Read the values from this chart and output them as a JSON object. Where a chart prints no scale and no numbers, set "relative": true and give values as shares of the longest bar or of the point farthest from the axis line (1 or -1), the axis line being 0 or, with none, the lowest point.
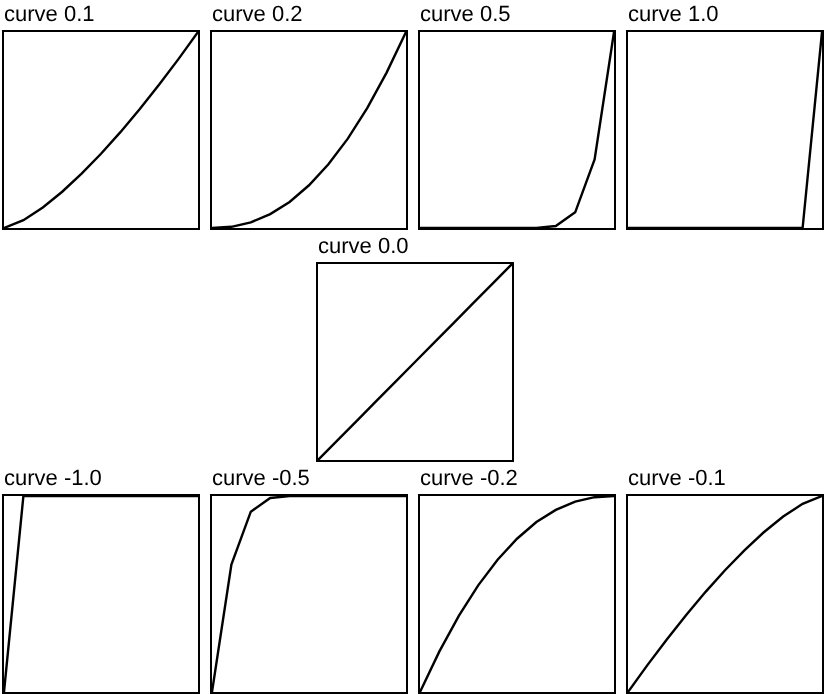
{
  "chart_data": [
    {
      "type": "line",
      "title": "curve 0.1",
      "categories": [
        null,
        null,
        null,
        null,
        null,
        null,
        null,
        null,
        null,
        null,
        null
      ],
      "values": [
        0,
        0.04,
        0.105,
        0.185,
        0.277,
        0.379,
        0.489,
        0.607,
        0.732,
        0.863,
        1
      ],
      "color": "#000000",
      "relative": true
    },
    {
      "type": "line",
      "title": "curve 0.2",
      "categories": [
        null,
        null,
        null,
        null,
        null,
        null,
        null,
        null,
        null,
        null,
        null
      ],
      "values": [
        0,
        0.006,
        0.029,
        0.071,
        0.133,
        0.218,
        0.325,
        0.456,
        0.612,
        0.793,
        1
      ],
      "color": "#000000",
      "relative": true
    },
    {
      "type": "line",
      "title": "curve 0.5",
      "categories": [
        null,
        null,
        null,
        null,
        null,
        null,
        null,
        null,
        null,
        null,
        null
      ],
      "values": [
        0,
        0,
        0,
        0,
        0,
        0,
        0,
        0.01,
        0.08,
        0.35,
        1
      ],
      "color": "#000000",
      "relative": true
    },
    {
      "type": "line",
      "title": "curve 1.0",
      "categories": [
        null,
        null,
        null,
        null,
        null,
        null,
        null,
        null,
        null,
        null,
        null
      ],
      "values": [
        0,
        0,
        0,
        0,
        0,
        0,
        0,
        0,
        0,
        0,
        1
      ],
      "color": "#000000",
      "relative": true
    },
    {
      "type": "line",
      "title": "curve 0.0",
      "categories": [
        null,
        null,
        null,
        null,
        null,
        null,
        null,
        null,
        null,
        null,
        null
      ],
      "values": [
        0,
        0.1,
        0.2,
        0.3,
        0.4,
        0.5,
        0.6,
        0.7,
        0.8,
        0.9,
        1
      ],
      "color": "#000000",
      "relative": true
    },
    {
      "type": "line",
      "title": "curve -1.0",
      "categories": [
        null,
        null,
        null,
        null,
        null,
        null,
        null,
        null,
        null,
        null,
        null
      ],
      "values": [
        0,
        1,
        1,
        1,
        1,
        1,
        1,
        1,
        1,
        1,
        1
      ],
      "color": "#000000",
      "relative": true
    },
    {
      "type": "line",
      "title": "curve -0.5",
      "categories": [
        null,
        null,
        null,
        null,
        null,
        null,
        null,
        null,
        null,
        null,
        null
      ],
      "values": [
        0,
        0.65,
        0.92,
        0.99,
        1,
        1,
        1,
        1,
        1,
        1,
        1
      ],
      "color": "#000000",
      "relative": true
    },
    {
      "type": "line",
      "title": "curve -0.2",
      "categories": [
        null,
        null,
        null,
        null,
        null,
        null,
        null,
        null,
        null,
        null,
        null
      ],
      "values": [
        0,
        0.207,
        0.388,
        0.544,
        0.675,
        0.782,
        0.867,
        0.929,
        0.971,
        0.994,
        1
      ],
      "color": "#000000",
      "relative": true
    },
    {
      "type": "line",
      "title": "curve -0.1",
      "categories": [
        null,
        null,
        null,
        null,
        null,
        null,
        null,
        null,
        null,
        null,
        null
      ],
      "values": [
        0,
        0.137,
        0.268,
        0.393,
        0.511,
        0.621,
        0.723,
        0.815,
        0.895,
        0.96,
        1
      ],
      "color": "#000000",
      "relative": true
    }
  ]
}
